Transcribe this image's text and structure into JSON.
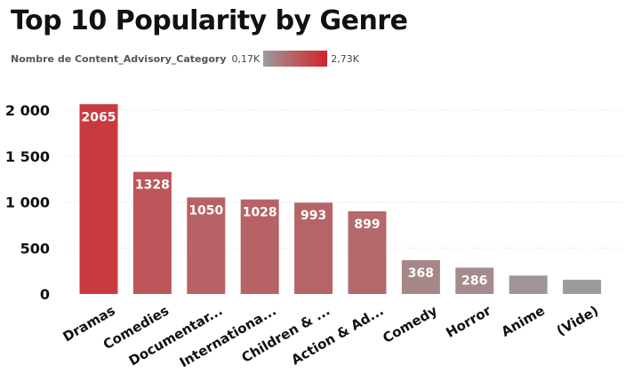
{
  "chart_data": {
    "type": "bar",
    "title": "Top 10 Popularity by Genre",
    "legend": {
      "label": "Nombre de Content_Advisory_Category",
      "min_label": "0,17K",
      "max_label": "2,73K",
      "min_value": 170,
      "max_value": 2730,
      "color_min": "#9e9a9b",
      "color_max": "#d3232a"
    },
    "categories": [
      "Dramas",
      "Comedies",
      "Documentar...",
      "Internationa...",
      "Children & ...",
      "Action & Ad...",
      "Comedy",
      "Horror",
      "Anime",
      "(Vide)"
    ],
    "values": [
      2065,
      1328,
      1050,
      1028,
      993,
      899,
      368,
      286,
      200,
      155
    ],
    "data_labels": [
      "2065",
      "1328",
      "1050",
      "1028",
      "993",
      "899",
      "368",
      "286",
      "",
      ""
    ],
    "ylim": [
      0,
      2000
    ],
    "yticks": [
      0,
      500,
      1000,
      1500,
      2000
    ],
    "ytick_labels": [
      "0",
      "500",
      "1 000",
      "1 500",
      "2 000"
    ],
    "grid": true,
    "xlabel": "",
    "ylabel": ""
  }
}
